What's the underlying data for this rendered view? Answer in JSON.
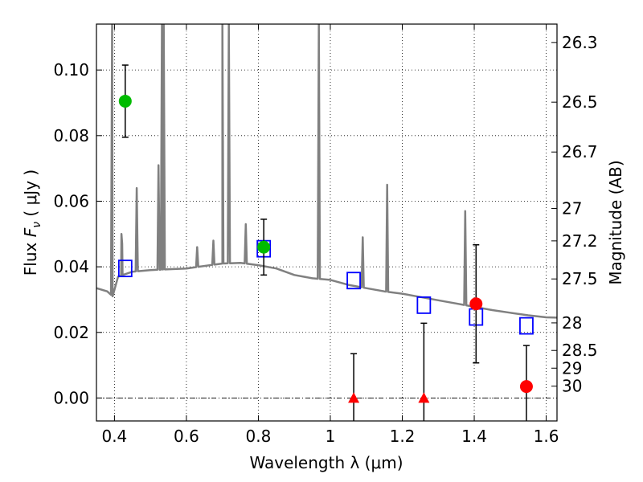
{
  "chart_data": {
    "type": "scatter",
    "xlabel": "Wavelength  λ (μm)",
    "ylabel": "Flux  F_ν ( μJy )",
    "ylabel_right": "Magnitude (AB)",
    "xlim": [
      0.35,
      1.63
    ],
    "ylim": [
      -0.007,
      0.114
    ],
    "grid": true,
    "x_ticks": [
      0.4,
      0.6,
      0.8,
      1.0,
      1.2,
      1.4,
      1.6
    ],
    "x_tick_labels": [
      "0.4",
      "0.6",
      "0.8",
      "1",
      "1.2",
      "1.4",
      "1.6"
    ],
    "y_ticks": [
      0.0,
      0.02,
      0.04,
      0.06,
      0.08,
      0.1
    ],
    "y_tick_labels": [
      "0.00",
      "0.02",
      "0.04",
      "0.06",
      "0.08",
      "0.10"
    ],
    "right_ticks": [
      {
        "label": "26.3",
        "flux": 0.1084
      },
      {
        "label": "26.5",
        "flux": 0.0902
      },
      {
        "label": "26.7",
        "flux": 0.075
      },
      {
        "label": "27",
        "flux": 0.0578
      },
      {
        "label": "27.2",
        "flux": 0.0479
      },
      {
        "label": "27.5",
        "flux": 0.0363
      },
      {
        "label": "28",
        "flux": 0.0229
      },
      {
        "label": "28.5",
        "flux": 0.0145
      },
      {
        "label": "29",
        "flux": 0.0091
      },
      {
        "label": "30",
        "flux": 0.0036
      }
    ],
    "model_spectrum": {
      "color": "#808080",
      "continuum": [
        [
          0.35,
          0.0335
        ],
        [
          0.38,
          0.0325
        ],
        [
          0.395,
          0.031
        ],
        [
          0.41,
          0.037
        ],
        [
          0.45,
          0.0385
        ],
        [
          0.5,
          0.039
        ],
        [
          0.6,
          0.0395
        ],
        [
          0.7,
          0.041
        ],
        [
          0.75,
          0.0412
        ],
        [
          0.8,
          0.0405
        ],
        [
          0.85,
          0.0395
        ],
        [
          0.9,
          0.0375
        ],
        [
          0.95,
          0.0365
        ],
        [
          1.0,
          0.036
        ],
        [
          1.05,
          0.0345
        ],
        [
          1.1,
          0.0335
        ],
        [
          1.15,
          0.0325
        ],
        [
          1.2,
          0.0318
        ],
        [
          1.25,
          0.0308
        ],
        [
          1.3,
          0.0298
        ],
        [
          1.35,
          0.0288
        ],
        [
          1.4,
          0.0278
        ],
        [
          1.45,
          0.0268
        ],
        [
          1.5,
          0.026
        ],
        [
          1.55,
          0.0252
        ],
        [
          1.6,
          0.0246
        ],
        [
          1.63,
          0.0245
        ]
      ],
      "emission_lines": [
        {
          "x": 0.3935,
          "peak": 0.114
        },
        {
          "x": 0.4195,
          "peak": 0.05
        },
        {
          "x": 0.4215,
          "peak": 0.047
        },
        {
          "x": 0.462,
          "peak": 0.064
        },
        {
          "x": 0.5225,
          "peak": 0.071
        },
        {
          "x": 0.532,
          "peak": 0.114
        },
        {
          "x": 0.537,
          "peak": 0.114
        },
        {
          "x": 0.63,
          "peak": 0.046
        },
        {
          "x": 0.675,
          "peak": 0.048
        },
        {
          "x": 0.7,
          "peak": 0.114
        },
        {
          "x": 0.718,
          "peak": 0.114
        },
        {
          "x": 0.765,
          "peak": 0.053
        },
        {
          "x": 0.968,
          "peak": 0.114
        },
        {
          "x": 1.09,
          "peak": 0.049
        },
        {
          "x": 1.158,
          "peak": 0.065
        },
        {
          "x": 1.375,
          "peak": 0.057
        }
      ]
    },
    "series": [
      {
        "marker": "open-square",
        "color": "#0000ff",
        "points": [
          {
            "x": 0.43,
            "y": 0.0395
          },
          {
            "x": 0.815,
            "y": 0.0455
          },
          {
            "x": 1.065,
            "y": 0.0358
          },
          {
            "x": 1.26,
            "y": 0.0283
          },
          {
            "x": 1.405,
            "y": 0.0247
          },
          {
            "x": 1.545,
            "y": 0.022
          }
        ]
      },
      {
        "marker": "filled-circle",
        "color": "#00bb00",
        "points": [
          {
            "x": 0.43,
            "y": 0.0905,
            "err": 0.011
          },
          {
            "x": 0.815,
            "y": 0.046,
            "err": 0.0085
          }
        ]
      },
      {
        "marker": "filled-circle",
        "color": "#ff0000",
        "points": [
          {
            "x": 1.405,
            "y": 0.0287,
            "err": 0.018
          },
          {
            "x": 1.545,
            "y": 0.0035,
            "err": 0.0125
          }
        ]
      },
      {
        "marker": "filled-triangle",
        "color": "#ff0000",
        "points": [
          {
            "x": 1.065,
            "y": 0.0,
            "err": 0.0135
          },
          {
            "x": 1.26,
            "y": 0.0,
            "err": 0.0228
          }
        ]
      }
    ]
  }
}
